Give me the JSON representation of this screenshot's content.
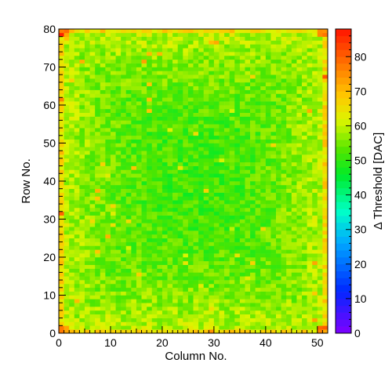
{
  "chart_data": {
    "type": "heatmap",
    "xlabel": "Column No.",
    "ylabel": "Row No.",
    "zlabel": "Δ Threshold [DAC]",
    "xlim": [
      0,
      52
    ],
    "ylim": [
      0,
      80
    ],
    "zlim": [
      0,
      88
    ],
    "xticks": [
      0,
      10,
      20,
      30,
      40,
      50
    ],
    "yticks": [
      0,
      10,
      20,
      30,
      40,
      50,
      60,
      70,
      80
    ],
    "zticks": [
      0,
      10,
      20,
      30,
      40,
      50,
      60,
      70,
      80
    ],
    "n_columns": 52,
    "n_rows": 80,
    "colormap": "rainbow",
    "value_summary": {
      "center_value": 51,
      "edge_value": 60,
      "outer_border_value": 66,
      "corner_value": 76
    }
  }
}
